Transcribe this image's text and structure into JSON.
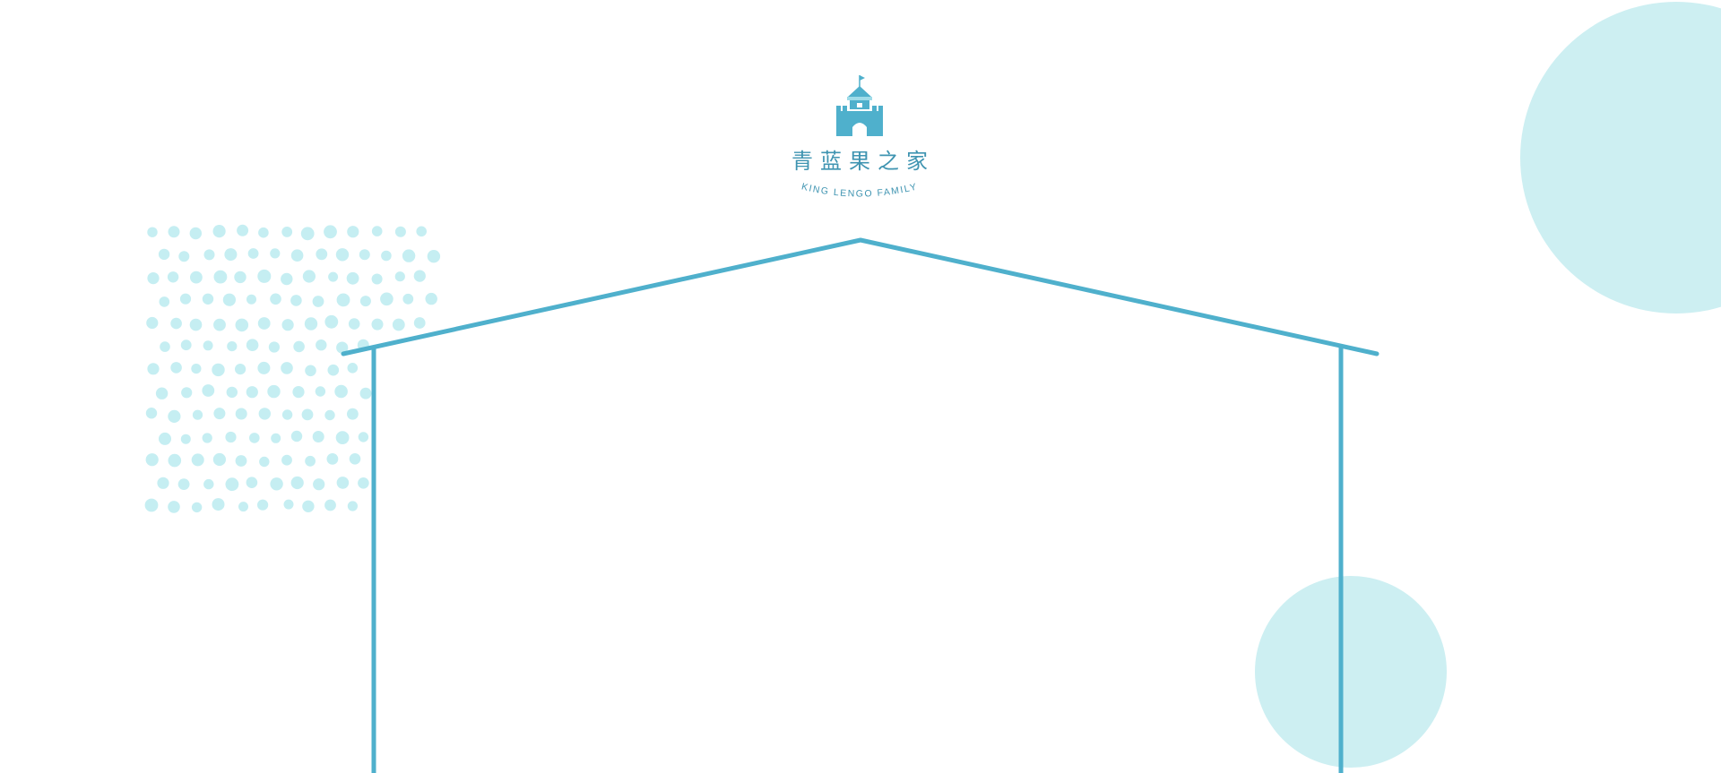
{
  "brand": {
    "name_cn": "青蓝果之家",
    "name_en": "KING LENGO FAMILY",
    "logo_icon": "castle-icon"
  },
  "colors": {
    "accent": "#4fb0cc",
    "accent_dark": "#3f94b1",
    "soft_cyan": "#cdeff2",
    "dot_cyan": "#c5eef2",
    "background": "#ffffff"
  }
}
